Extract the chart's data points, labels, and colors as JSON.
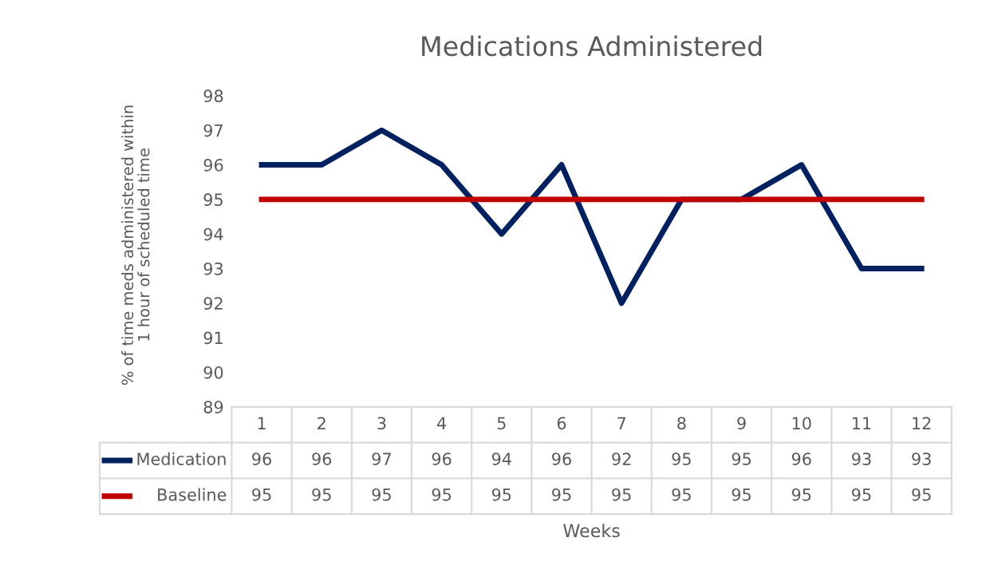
{
  "chart_data": {
    "type": "line",
    "title": "Medications Administered",
    "annotations": [
      "Weeks"
    ],
    "ylabel": "% of time meds administered within 1 hour of scheduled time",
    "categories": [
      "1",
      "2",
      "3",
      "4",
      "5",
      "6",
      "7",
      "8",
      "9",
      "10",
      "11",
      "12"
    ],
    "series": [
      {
        "name": "Medication",
        "color": "#002060",
        "values": [
          96,
          96,
          97,
          96,
          94,
          96,
          92,
          95,
          95,
          96,
          93,
          93
        ]
      },
      {
        "name": "Baseline",
        "color": "#c00000",
        "values": [
          95,
          95,
          95,
          95,
          95,
          95,
          95,
          95,
          95,
          95,
          95,
          95
        ]
      }
    ],
    "ylim": [
      89,
      98
    ],
    "yticks": [
      89,
      90,
      91,
      92,
      93,
      94,
      95,
      96,
      97,
      98
    ],
    "grid": false,
    "legend": "bottom",
    "data_labels": true,
    "marker": "none",
    "line_style": "solid"
  }
}
